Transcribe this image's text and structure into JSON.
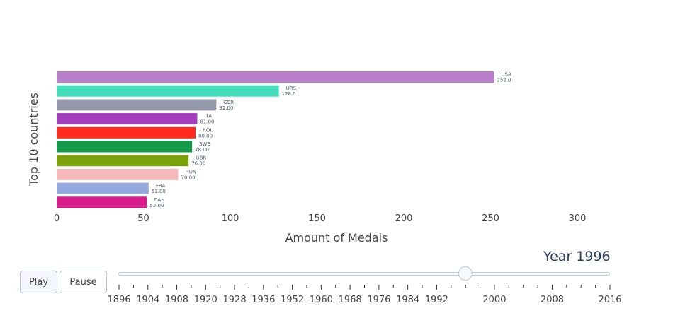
{
  "chart_data": {
    "type": "bar",
    "orientation": "horizontal",
    "xlabel": "Amount of Medals",
    "ylabel": "Top 10 countries",
    "xlim": [
      0,
      320
    ],
    "xticks": [
      0,
      50,
      100,
      150,
      200,
      250,
      300
    ],
    "grid": false,
    "legend": "none",
    "bars": [
      {
        "country": "USA",
        "value": 252,
        "value_label": "252.0",
        "color": "#B97ECA"
      },
      {
        "country": "URS",
        "value": 128,
        "value_label": "128.0",
        "color": "#44DDBB"
      },
      {
        "country": "GER",
        "value": 92,
        "value_label": "92.00",
        "color": "#9499AA"
      },
      {
        "country": "ITA",
        "value": 81,
        "value_label": "81.00",
        "color": "#A23DBD"
      },
      {
        "country": "ROU",
        "value": 80,
        "value_label": "80.00",
        "color": "#FF2B1E"
      },
      {
        "country": "SWE",
        "value": 78,
        "value_label": "78.00",
        "color": "#149A4A"
      },
      {
        "country": "GBR",
        "value": 76,
        "value_label": "76.00",
        "color": "#7AA00A"
      },
      {
        "country": "HUN",
        "value": 70,
        "value_label": "70.00",
        "color": "#F6B8BA"
      },
      {
        "country": "FRA",
        "value": 53,
        "value_label": "53.00",
        "color": "#94A9DF"
      },
      {
        "country": "CAN",
        "value": 52,
        "value_label": "52.00",
        "color": "#D91E8B"
      }
    ]
  },
  "controls": {
    "play_label": "Play",
    "pause_label": "Pause",
    "current_value_label": "Year 1996"
  },
  "slider": {
    "years": [
      1896,
      1900,
      1904,
      1906,
      1908,
      1912,
      1920,
      1924,
      1928,
      1932,
      1936,
      1948,
      1952,
      1956,
      1960,
      1964,
      1968,
      1972,
      1976,
      1980,
      1984,
      1988,
      1992,
      1994,
      1996,
      1998,
      2000,
      2002,
      2004,
      2006,
      2008,
      2010,
      2012,
      2014,
      2016
    ],
    "labeled_years": [
      1896,
      1904,
      1908,
      1920,
      1928,
      1936,
      1952,
      1960,
      1968,
      1976,
      1984,
      1992,
      2000,
      2008,
      2016
    ],
    "current_year": 1996
  }
}
